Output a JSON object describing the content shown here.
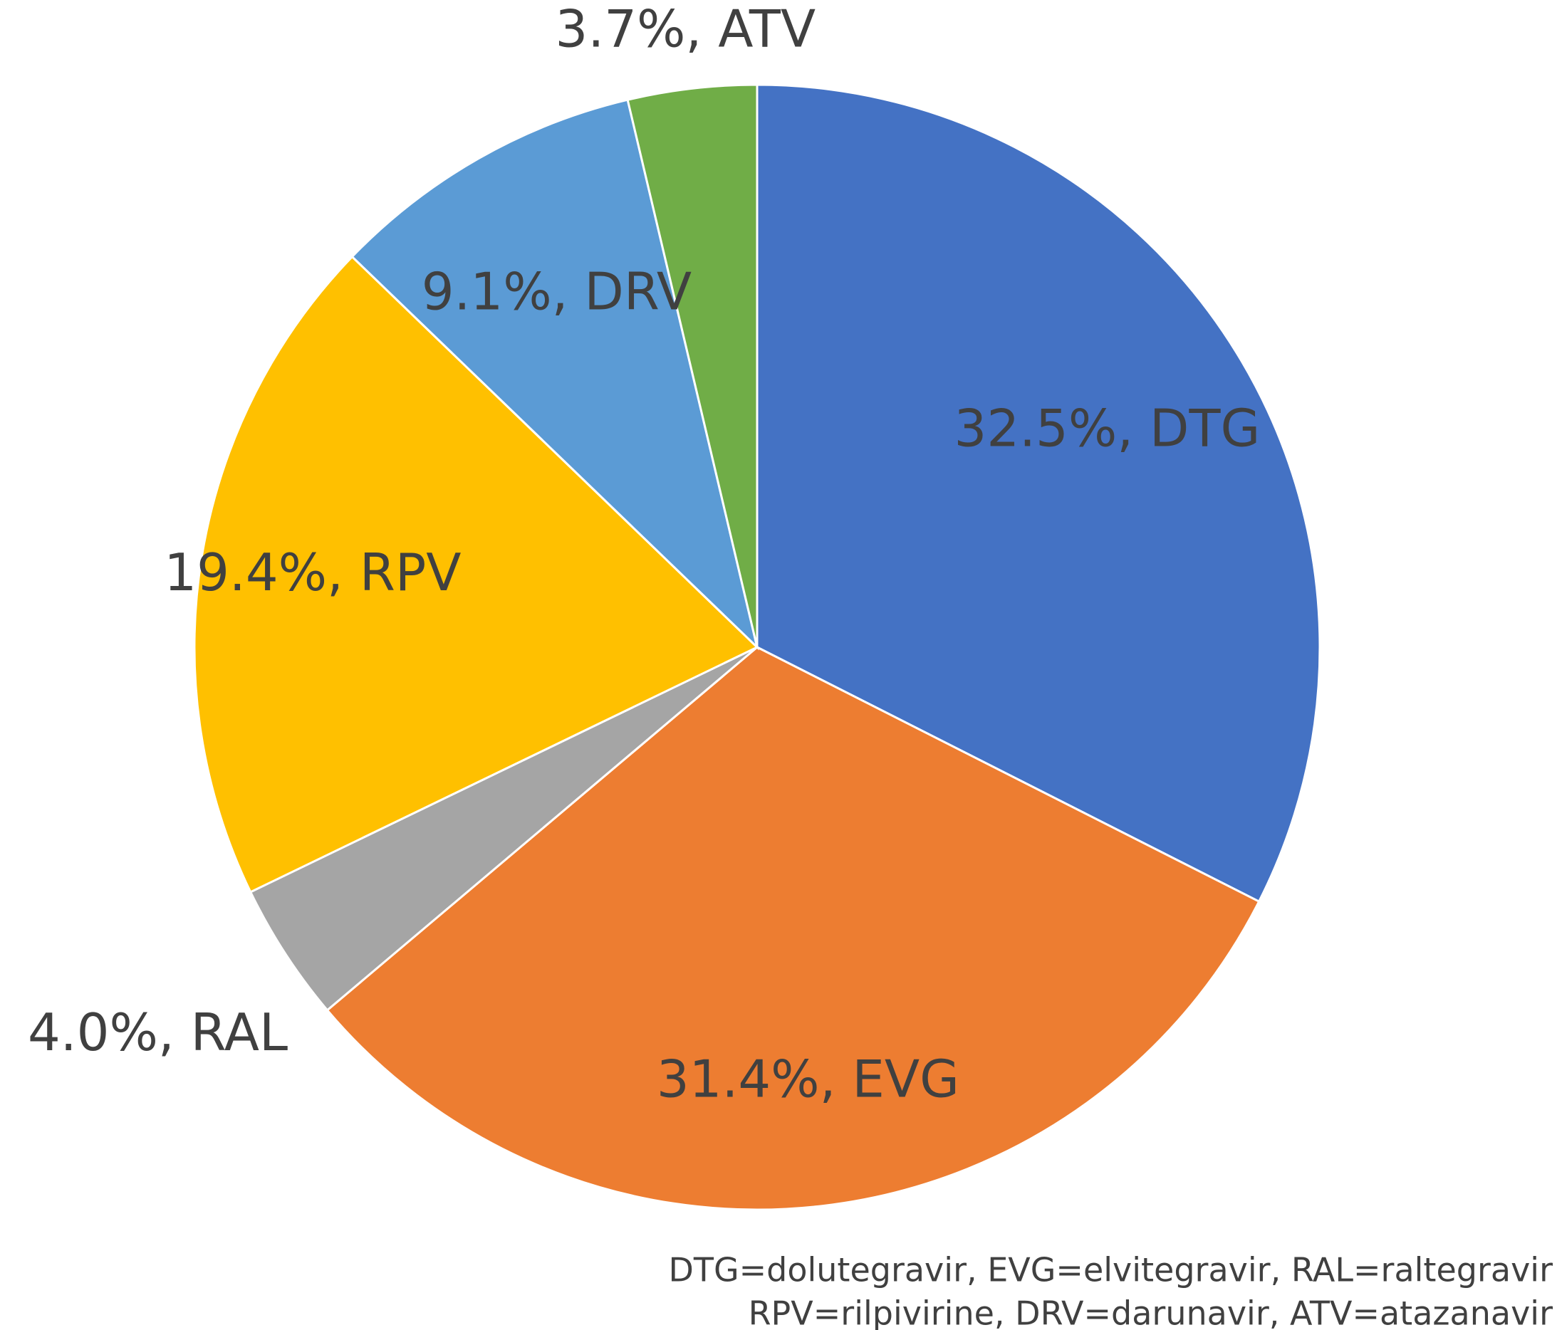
{
  "chart_data": {
    "type": "pie",
    "categories": [
      "DTG",
      "EVG",
      "RAL",
      "RPV",
      "DRV",
      "ATV"
    ],
    "values": [
      32.5,
      31.4,
      4.0,
      19.4,
      9.1,
      3.7
    ],
    "value_labels": [
      "32.5%, DTG",
      "31.4%, EVG",
      "4.0%, RAL",
      "19.4%, RPV",
      "9.1%, DRV",
      "3.7%, ATV"
    ],
    "colors": [
      "#4472c4",
      "#ed7d31",
      "#a5a5a5",
      "#ffc000",
      "#5b9bd5",
      "#70ad47"
    ],
    "notes": [
      "DTG=dolutegravir, EVG=elvitegravir, RAL=raltegravir",
      "RPV=rilpivirine, DRV=darunavir, ATV=atazanavir"
    ]
  }
}
